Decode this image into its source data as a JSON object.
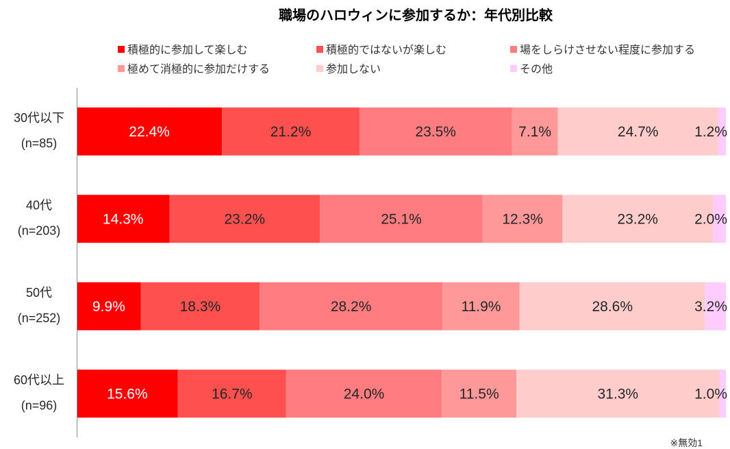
{
  "chart_data": {
    "type": "bar",
    "horizontal": true,
    "stacked": true,
    "title": "職場のハロウィンに参加するか：年代別比較",
    "categories": [
      "30代以下",
      "40代",
      "50代",
      "60代以上"
    ],
    "sample_sizes": [
      "(n=85)",
      "(n=203)",
      "(n=252)",
      "(n=96)"
    ],
    "series": [
      {
        "name": "積極的に参加して楽しむ",
        "color": "#FF0000",
        "label_color": "#FFFFFF",
        "values": [
          22.4,
          14.3,
          9.9,
          15.6
        ]
      },
      {
        "name": "積極的ではないが楽しむ",
        "color": "#FF5050",
        "label_color": "#262626",
        "values": [
          21.2,
          23.2,
          18.3,
          16.7
        ]
      },
      {
        "name": "場をしらけさせない程度に参加する",
        "color": "#FF7C80",
        "label_color": "#262626",
        "values": [
          23.5,
          25.1,
          28.2,
          24.0
        ]
      },
      {
        "name": "極めて消極的に参加だけする",
        "color": "#FF9999",
        "label_color": "#262626",
        "values": [
          7.1,
          12.3,
          11.9,
          11.5
        ]
      },
      {
        "name": "参加しない",
        "color": "#FFCCCC",
        "label_color": "#262626",
        "values": [
          24.7,
          23.2,
          28.6,
          31.3
        ]
      },
      {
        "name": "その他",
        "color": "#FFCCFF",
        "label_color": "#262626",
        "values": [
          1.2,
          2.0,
          3.2,
          1.0
        ]
      }
    ],
    "value_suffix": "%",
    "xlim": [
      0,
      100
    ],
    "xlabel": "",
    "ylabel": "",
    "grid": false,
    "legend": "top",
    "axis_color": "#8C8C8C",
    "footnote": "※無効1"
  }
}
